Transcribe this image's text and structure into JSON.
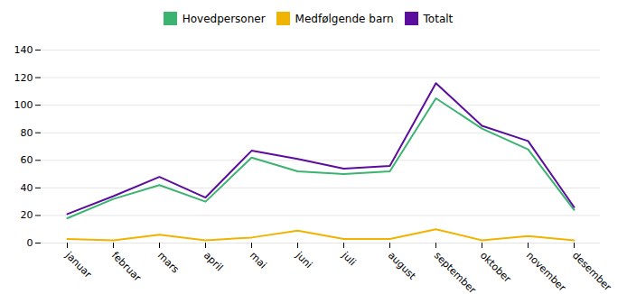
{
  "chart_data": {
    "type": "line",
    "categories": [
      "januar",
      "februar",
      "mars",
      "april",
      "mai",
      "juni",
      "juli",
      "august",
      "september",
      "oktober",
      "november",
      "desember"
    ],
    "series": [
      {
        "name": "Hovedpersoner",
        "color": "#3cb371",
        "values": [
          18,
          32,
          42,
          30,
          62,
          52,
          50,
          52,
          105,
          83,
          68,
          24
        ]
      },
      {
        "name": "Medfølgende barn",
        "color": "#f0b400",
        "values": [
          3,
          2,
          6,
          2,
          4,
          9,
          3,
          3,
          10,
          2,
          5,
          2
        ]
      },
      {
        "name": "Totalt",
        "color": "#5b0e9e",
        "values": [
          21,
          34,
          48,
          33,
          67,
          61,
          54,
          56,
          116,
          85,
          74,
          26
        ]
      }
    ],
    "ylim": [
      0,
      140
    ],
    "yticks": [
      0,
      20,
      40,
      60,
      80,
      100,
      120,
      140
    ],
    "grid": true,
    "legend": "top"
  }
}
